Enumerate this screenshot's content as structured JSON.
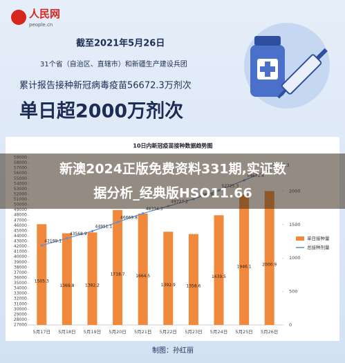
{
  "header": {
    "logo": "人民网",
    "logo_sub": "people.cn",
    "date": "截至2021年5月26日",
    "scope": "31个省（自治区、直辖市）和新疆生产建设兵团",
    "total": "累计报告接种新冠病毒疫苗56672.3万剂次",
    "headline": "单日超2000万剂次"
  },
  "overlay": [
    "新澳2024正版免费资料331期,实证数",
    "据分析_经典版HSO11.66"
  ],
  "credit": "制图：孙红丽",
  "chart_data": {
    "type": "bar",
    "title": "10日内新冠疫苗接种数据趋势图",
    "categories": [
      "5月17日",
      "5月18日",
      "5月19日",
      "5月20日",
      "5月21日",
      "5月22日",
      "5月23日",
      "5月24日",
      "5月25日",
      "5月26日"
    ],
    "series": [
      {
        "name": "单日接种量",
        "type": "bar",
        "axis": "y2",
        "color": "#f0893b",
        "values": [
          1505.3,
          1369.8,
          1382.2,
          1718.7,
          1664.5,
          1392.9,
          1358.6,
          1639.5,
          1946.1,
          2000.9
        ]
      },
      {
        "name": "总接种剂量",
        "type": "line",
        "axis": "y",
        "color": "#5b8fd6",
        "values": [
          42199.1,
          43568.9,
          44951.1,
          46669.8,
          48334.3,
          49727.2,
          51085.8,
          52725.3,
          54671.4,
          56672.3
        ]
      }
    ],
    "ylim": [
      27000,
      59000
    ],
    "yticks": [
      27000,
      28000,
      29000,
      30000,
      31000,
      32000,
      33000,
      34000,
      35000,
      36000,
      37000,
      38000,
      39000,
      40000,
      41000,
      42000,
      43000,
      44000,
      45000,
      46000,
      47000,
      48000,
      49000,
      50000,
      51000,
      52000,
      53000,
      54000,
      55000,
      56000,
      57000,
      58000,
      59000
    ],
    "y2lim": [
      0,
      2500
    ],
    "y2ticks": [
      0,
      500,
      1000,
      1500,
      2000
    ],
    "legend": "right"
  }
}
